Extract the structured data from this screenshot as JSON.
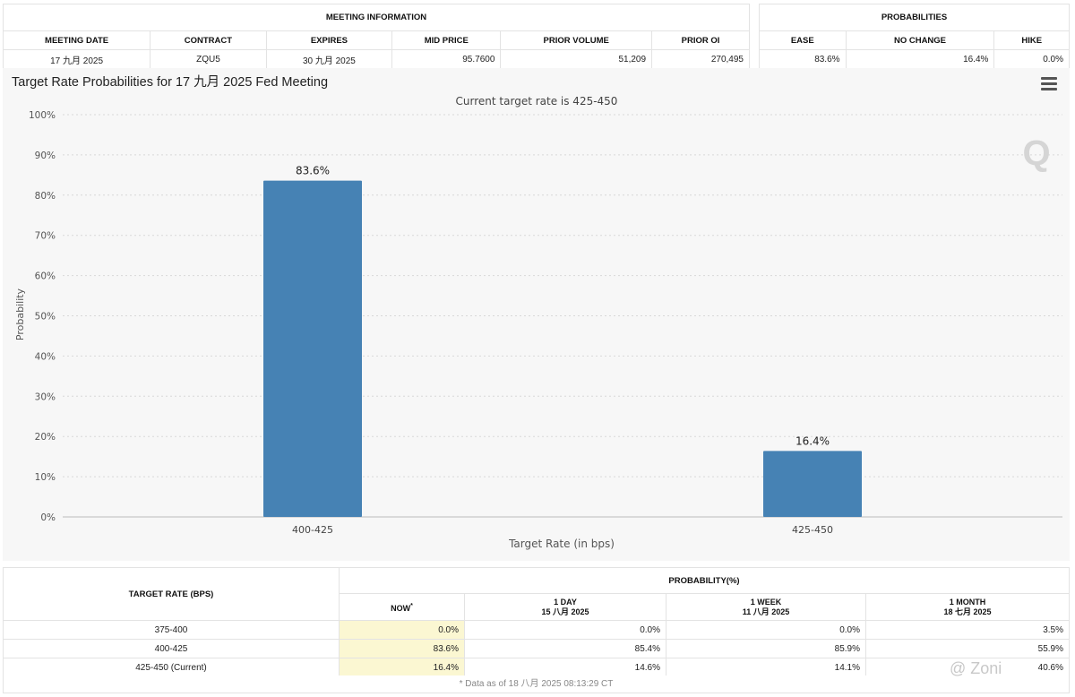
{
  "meeting_info": {
    "header": "MEETING INFORMATION",
    "columns": [
      "MEETING DATE",
      "CONTRACT",
      "EXPIRES",
      "MID PRICE",
      "PRIOR VOLUME",
      "PRIOR OI"
    ],
    "values": [
      "17 九月 2025",
      "ZQU5",
      "30 九月 2025",
      "95.7600",
      "51,209",
      "270,495"
    ]
  },
  "probabilities": {
    "header": "PROBABILITIES",
    "columns": [
      "EASE",
      "NO CHANGE",
      "HIKE"
    ],
    "values": [
      "83.6%",
      "16.4%",
      "0.0%"
    ]
  },
  "chart_data": {
    "type": "bar",
    "title": "Target Rate Probabilities for 17 九月 2025 Fed Meeting",
    "subtitle": "Current target rate is 425-450",
    "xlabel": "Target Rate (in bps)",
    "ylabel": "Probability",
    "categories": [
      "400-425",
      "425-450"
    ],
    "values": [
      83.6,
      16.4
    ],
    "data_labels": [
      "83.6%",
      "16.4%"
    ],
    "ylim": [
      0,
      100
    ],
    "yticks": [
      "0%",
      "10%",
      "20%",
      "30%",
      "40%",
      "50%",
      "60%",
      "70%",
      "80%",
      "90%",
      "100%"
    ],
    "grid": true,
    "bar_color": "#4682b4",
    "logo_text": "Q"
  },
  "history": {
    "target_header": "TARGET RATE (BPS)",
    "prob_header": "PROBABILITY(%)",
    "columns": [
      {
        "label": "NOW",
        "sub": "",
        "mark": "*"
      },
      {
        "label": "1 DAY",
        "sub": "15 八月 2025"
      },
      {
        "label": "1 WEEK",
        "sub": "11 八月 2025"
      },
      {
        "label": "1 MONTH",
        "sub": "18 七月 2025"
      }
    ],
    "rows": [
      {
        "target": "375-400",
        "vals": [
          "0.0%",
          "0.0%",
          "0.0%",
          "3.5%"
        ]
      },
      {
        "target": "400-425",
        "vals": [
          "83.6%",
          "85.4%",
          "85.9%",
          "55.9%"
        ]
      },
      {
        "target": "425-450 (Current)",
        "vals": [
          "16.4%",
          "14.6%",
          "14.1%",
          "40.6%"
        ]
      }
    ]
  },
  "footnote": "* Data as of 18 八月 2025 08:13:29 CT",
  "watermark": "@ Zoni"
}
